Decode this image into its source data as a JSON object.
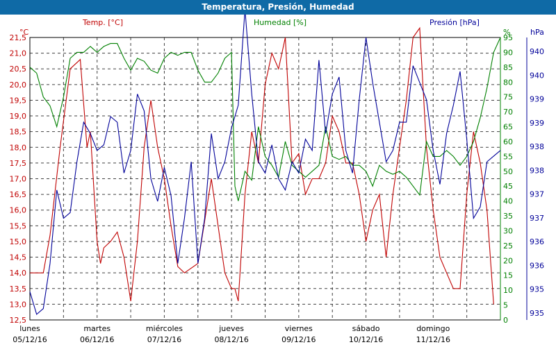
{
  "window": {
    "title": "Temperatura, Presión, Humedad"
  },
  "colors": {
    "title_bar": "#0f6aa6",
    "temp": "#c00000",
    "hum": "#008000",
    "pres": "#000099",
    "grid": "#000000"
  },
  "chart_data": {
    "type": "line",
    "title": "Temperatura, Presión, Humedad",
    "grid": true,
    "x_categories": [
      {
        "day": "lunes",
        "date": "05/12/16"
      },
      {
        "day": "martes",
        "date": "06/12/16"
      },
      {
        "day": "miércoles",
        "date": "07/12/16"
      },
      {
        "day": "jueves",
        "date": "08/12/16"
      },
      {
        "day": "viernes",
        "date": "09/12/16"
      },
      {
        "day": "sábado",
        "date": "10/12/16"
      },
      {
        "day": "domingo",
        "date": "11/12/16"
      }
    ],
    "axes": {
      "temp": {
        "label": "Temp. [°C]",
        "unit": "°C",
        "range": [
          12.5,
          21.5
        ],
        "ticks": [
          "21,5",
          "21,0",
          "20,5",
          "20,0",
          "19,5",
          "19,0",
          "18,5",
          "18,0",
          "17,5",
          "17,0",
          "16,5",
          "16,0",
          "15,5",
          "15,0",
          "14,5",
          "14,0",
          "13,5",
          "13,0",
          "12,5"
        ]
      },
      "hum": {
        "label": "Humedad [%]",
        "unit": "%",
        "range": [
          0,
          95
        ],
        "ticks": [
          "95",
          "90",
          "85",
          "80",
          "75",
          "70",
          "65",
          "60",
          "55",
          "50",
          "45",
          "40",
          "35",
          "30",
          "25",
          "20",
          "15",
          "10",
          "5",
          "0"
        ]
      },
      "pres": {
        "label": "Presión [hPa]",
        "unit": "hPa",
        "range": [
          935,
          940
        ],
        "ticks": [
          "940",
          "940",
          "939",
          "939",
          "938",
          "938",
          "937",
          "937",
          "936",
          "936",
          "935",
          "935"
        ]
      }
    },
    "series": [
      {
        "name": "Temp. [°C]",
        "axis": "temp",
        "color": "#c00000",
        "x": [
          0,
          0.08,
          0.2,
          0.3,
          0.45,
          0.6,
          0.75,
          0.85,
          0.9,
          1.0,
          1.05,
          1.1,
          1.2,
          1.3,
          1.4,
          1.5,
          1.6,
          1.7,
          1.8,
          1.9,
          2.0,
          2.1,
          2.2,
          2.3,
          2.5,
          2.7,
          2.9,
          3.0,
          3.05,
          3.1,
          3.2,
          3.25,
          3.3,
          3.4,
          3.5,
          3.6,
          3.7,
          3.8,
          3.9,
          4.0,
          4.1,
          4.2,
          4.3,
          4.4,
          4.5,
          4.6,
          4.7,
          4.8,
          4.9,
          5.0,
          5.1,
          5.2,
          5.3,
          5.4,
          5.5,
          5.6,
          5.7,
          5.8,
          5.9,
          6.0,
          6.1,
          6.2,
          6.3,
          6.4,
          6.5,
          6.6,
          6.7,
          6.8,
          6.9
        ],
        "values": [
          14.0,
          14.0,
          14.0,
          15.2,
          18.0,
          20.5,
          20.8,
          18.0,
          18.5,
          15.0,
          14.3,
          14.8,
          15.0,
          15.3,
          14.5,
          13.1,
          15.0,
          18.0,
          19.5,
          18.0,
          17.0,
          15.5,
          14.2,
          14.0,
          14.3,
          17.0,
          14.0,
          13.5,
          13.5,
          13.1,
          16.5,
          17.5,
          18.5,
          17.5,
          20.0,
          21.0,
          20.5,
          21.5,
          17.5,
          17.8,
          16.5,
          17.0,
          17.0,
          17.5,
          19.0,
          18.5,
          17.5,
          17.5,
          16.5,
          15.0,
          16.0,
          16.5,
          14.5,
          16.5,
          18.0,
          19.5,
          21.5,
          21.8,
          18.0,
          16.0,
          14.5,
          14.0,
          13.5,
          13.5,
          16.5,
          18.5,
          17.5,
          16.0,
          13.0
        ]
      },
      {
        "name": "Humedad [%]",
        "axis": "hum",
        "color": "#008000",
        "x": [
          0,
          0.1,
          0.2,
          0.3,
          0.4,
          0.5,
          0.6,
          0.7,
          0.8,
          0.9,
          1.0,
          1.1,
          1.2,
          1.3,
          1.4,
          1.5,
          1.6,
          1.7,
          1.8,
          1.9,
          2.0,
          2.1,
          2.2,
          2.3,
          2.4,
          2.5,
          2.6,
          2.7,
          2.8,
          2.9,
          3.0,
          3.05,
          3.1,
          3.2,
          3.3,
          3.4,
          3.5,
          3.6,
          3.7,
          3.8,
          3.9,
          4.0,
          4.1,
          4.2,
          4.3,
          4.4,
          4.5,
          4.6,
          4.7,
          4.8,
          4.9,
          5.0,
          5.1,
          5.2,
          5.3,
          5.4,
          5.5,
          5.6,
          5.7,
          5.8,
          5.9,
          6.0,
          6.1,
          6.2,
          6.3,
          6.4,
          6.5,
          6.6,
          6.7,
          6.8,
          6.9,
          7.0
        ],
        "values": [
          85,
          83,
          75,
          72,
          65,
          75,
          88,
          90,
          90,
          92,
          90,
          92,
          93,
          93,
          88,
          84,
          88,
          87,
          84,
          83,
          88,
          90,
          89,
          90,
          90,
          84,
          80,
          80,
          83,
          88,
          90,
          45,
          40,
          50,
          47,
          65,
          55,
          52,
          48,
          60,
          52,
          50,
          48,
          50,
          52,
          65,
          55,
          54,
          55,
          52,
          52,
          50,
          45,
          52,
          50,
          49,
          50,
          48,
          45,
          42,
          60,
          55,
          55,
          57,
          55,
          52,
          55,
          60,
          68,
          78,
          90,
          95
        ]
      },
      {
        "name": "Presión [hPa]",
        "axis": "pres",
        "color": "#000099",
        "x": [
          0,
          0.1,
          0.2,
          0.3,
          0.4,
          0.5,
          0.6,
          0.7,
          0.8,
          0.9,
          1.0,
          1.1,
          1.2,
          1.3,
          1.4,
          1.5,
          1.6,
          1.7,
          1.8,
          1.9,
          2.0,
          2.1,
          2.2,
          2.3,
          2.4,
          2.5,
          2.6,
          2.7,
          2.8,
          2.9,
          3.0,
          3.1,
          3.2,
          3.3,
          3.4,
          3.5,
          3.6,
          3.7,
          3.8,
          3.9,
          4.0,
          4.1,
          4.2,
          4.3,
          4.4,
          4.5,
          4.6,
          4.7,
          4.8,
          4.9,
          5.0,
          5.1,
          5.2,
          5.3,
          5.4,
          5.5,
          5.6,
          5.7,
          5.8,
          5.9,
          6.0,
          6.1,
          6.2,
          6.3,
          6.4,
          6.5,
          6.6,
          6.7,
          6.8,
          6.9,
          7.0
        ],
        "values": [
          935.5,
          935.1,
          935.2,
          936.0,
          937.3,
          936.8,
          936.9,
          937.8,
          938.5,
          938.3,
          938.0,
          938.1,
          938.6,
          938.5,
          937.6,
          938.0,
          939.0,
          938.7,
          937.5,
          937.1,
          937.7,
          937.2,
          936.0,
          936.8,
          937.8,
          936.0,
          936.8,
          938.3,
          937.5,
          937.8,
          938.4,
          938.8,
          940.5,
          939.0,
          937.8,
          937.6,
          938.1,
          937.5,
          937.3,
          937.8,
          937.6,
          938.2,
          938.0,
          939.6,
          938.3,
          939.0,
          939.3,
          938.0,
          937.6,
          938.9,
          940.0,
          939.2,
          938.5,
          937.8,
          938.0,
          938.5,
          938.5,
          939.5,
          939.2,
          938.9,
          938.0,
          937.4,
          938.3,
          938.8,
          939.4,
          938.2,
          936.8,
          937.0,
          937.8,
          937.9,
          938.0
        ]
      }
    ]
  }
}
